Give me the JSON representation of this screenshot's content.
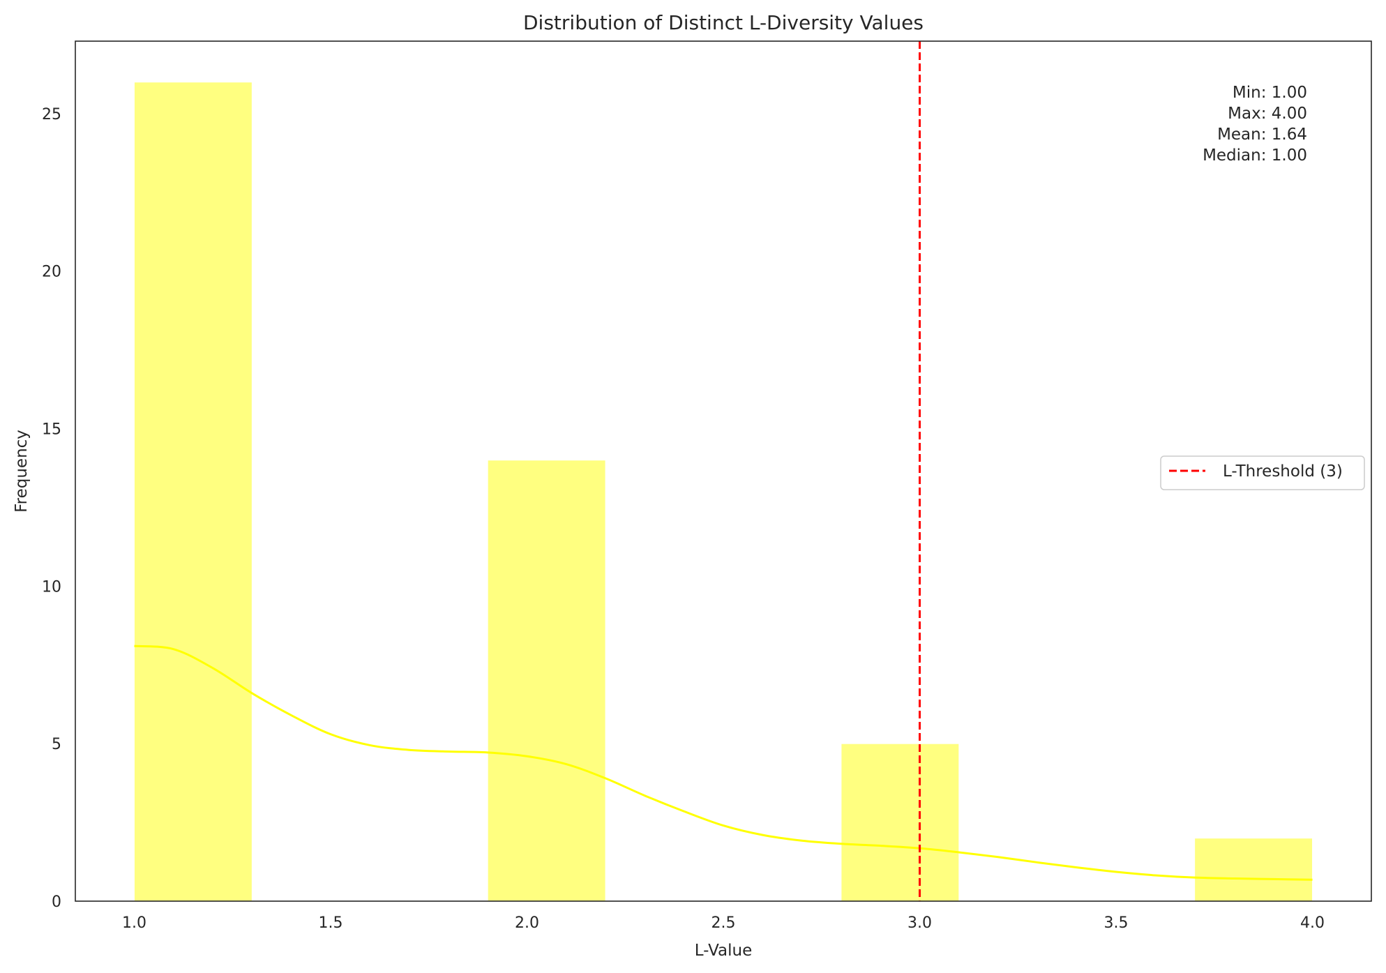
{
  "chart_data": {
    "type": "bar",
    "title": "Distribution of Distinct L-Diversity Values",
    "xlabel": "L-Value",
    "ylabel": "Frequency",
    "xlim": [
      0.85,
      4.15
    ],
    "ylim": [
      0,
      27.3
    ],
    "xticks": [
      "1.0",
      "1.5",
      "2.0",
      "2.5",
      "3.0",
      "3.5",
      "4.0"
    ],
    "xtick_values": [
      1.0,
      1.5,
      2.0,
      2.5,
      3.0,
      3.5,
      4.0
    ],
    "yticks": [
      "0",
      "5",
      "10",
      "15",
      "20",
      "25"
    ],
    "ytick_values": [
      0,
      5,
      10,
      15,
      20,
      25
    ],
    "bins": [
      {
        "start": 1.0,
        "end": 1.3,
        "count": 26
      },
      {
        "start": 1.9,
        "end": 2.2,
        "count": 14
      },
      {
        "start": 2.8,
        "end": 3.1,
        "count": 5
      },
      {
        "start": 3.7,
        "end": 4.0,
        "count": 2
      }
    ],
    "bar_color": "#ffff80",
    "kde": {
      "color": "#ffff00",
      "x": [
        1.0,
        1.1,
        1.2,
        1.3,
        1.4,
        1.5,
        1.6,
        1.7,
        1.8,
        1.9,
        2.0,
        2.1,
        2.2,
        2.3,
        2.4,
        2.5,
        2.6,
        2.7,
        2.8,
        2.9,
        3.0,
        3.1,
        3.2,
        3.3,
        3.4,
        3.5,
        3.6,
        3.7,
        3.8,
        3.9,
        4.0
      ],
      "y": [
        8.1,
        8.0,
        7.4,
        6.6,
        5.9,
        5.3,
        4.95,
        4.8,
        4.75,
        4.72,
        4.6,
        4.35,
        3.9,
        3.35,
        2.85,
        2.4,
        2.1,
        1.92,
        1.82,
        1.76,
        1.68,
        1.55,
        1.4,
        1.23,
        1.07,
        0.93,
        0.82,
        0.75,
        0.72,
        0.7,
        0.68
      ]
    },
    "threshold": {
      "x": 3,
      "color": "#ff0000",
      "label": "L-Threshold (3)"
    },
    "stats": [
      "Min: 1.00",
      "Max: 4.00",
      "Mean: 1.64",
      "Median: 1.00"
    ],
    "legend_position": "center-right",
    "grid": false
  }
}
